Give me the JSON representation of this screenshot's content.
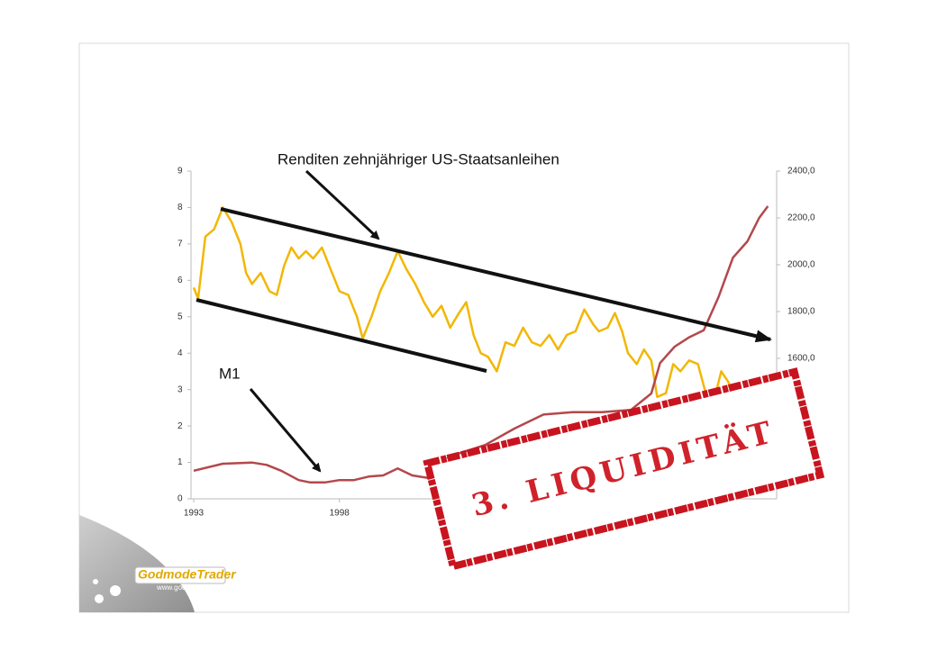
{
  "stamp": "3. LIQUIDITÄT",
  "logo": {
    "name": "GodmodeTrader",
    "url": "www.godmode-trader.de"
  },
  "chart_data": {
    "type": "line",
    "xlim": [
      1993,
      2013
    ],
    "xticks": [
      1993,
      1998
    ],
    "ylim": [
      0,
      9
    ],
    "yticks": [
      0,
      1,
      2,
      3,
      4,
      5,
      6,
      7,
      8,
      9
    ],
    "y2lim": [
      1000,
      2400
    ],
    "y2ticks": [
      {
        "value": 1600,
        "label": "1600,0"
      },
      {
        "value": 1800,
        "label": "1800,0"
      },
      {
        "value": 2000,
        "label": "2000,0"
      },
      {
        "value": 2200,
        "label": "2200,0"
      },
      {
        "value": 2400,
        "label": "2400,0"
      }
    ],
    "series": [
      {
        "name": "Renditen zehnjähriger US-Staatsanleihen",
        "color": "#f2b705",
        "x": [
          1993.0,
          1993.15,
          1993.4,
          1993.7,
          1994.0,
          1994.3,
          1994.6,
          1994.8,
          1995.0,
          1995.3,
          1995.6,
          1995.85,
          1996.1,
          1996.35,
          1996.6,
          1996.85,
          1997.1,
          1997.4,
          1997.7,
          1998.0,
          1998.3,
          1998.6,
          1998.8,
          1999.1,
          1999.4,
          1999.7,
          2000.0,
          2000.3,
          2000.6,
          2000.9,
          2001.2,
          2001.5,
          2001.8,
          2002.1,
          2002.35,
          2002.6,
          2002.85,
          2003.1,
          2003.4,
          2003.7,
          2004.0,
          2004.3,
          2004.6,
          2004.9,
          2005.2,
          2005.5,
          2005.8,
          2006.1,
          2006.4,
          2006.7,
          2006.9,
          2007.2,
          2007.45,
          2007.7,
          2007.9,
          2008.2,
          2008.45,
          2008.7,
          2008.9,
          2009.2,
          2009.45,
          2009.7,
          2010.0,
          2010.3,
          2010.6,
          2010.85,
          2011.1,
          2011.35,
          2011.6,
          2011.9,
          2012.2,
          2012.45,
          2012.7
        ],
        "values": [
          5.8,
          5.5,
          7.2,
          7.4,
          8.0,
          7.6,
          7.0,
          6.2,
          5.9,
          6.2,
          5.7,
          5.6,
          6.4,
          6.9,
          6.6,
          6.8,
          6.6,
          6.9,
          6.3,
          5.7,
          5.6,
          5.0,
          4.4,
          5.0,
          5.7,
          6.2,
          6.8,
          6.3,
          5.9,
          5.4,
          5.0,
          5.3,
          4.7,
          5.1,
          5.4,
          4.5,
          4.0,
          3.9,
          3.5,
          4.3,
          4.2,
          4.7,
          4.3,
          4.2,
          4.5,
          4.1,
          4.5,
          4.6,
          5.2,
          4.8,
          4.6,
          4.7,
          5.1,
          4.6,
          4.0,
          3.7,
          4.1,
          3.8,
          2.8,
          2.9,
          3.7,
          3.5,
          3.8,
          3.7,
          2.8,
          2.7,
          3.5,
          3.2,
          2.2,
          2.0,
          2.1,
          1.6,
          1.7
        ]
      },
      {
        "name": "M1",
        "color": "#b3484c",
        "axis": "y2",
        "x": [
          1993.0,
          1994.0,
          1995.0,
          1995.5,
          1996.0,
          1996.6,
          1997.0,
          1997.5,
          1998.0,
          1998.5,
          1999.0,
          1999.5,
          2000.0,
          2000.5,
          2001.0,
          2001.5,
          2002.0,
          2003.0,
          2004.0,
          2005.0,
          2006.0,
          2007.0,
          2008.0,
          2008.7,
          2009.0,
          2009.5,
          2010.0,
          2010.5,
          2011.0,
          2011.5,
          2012.0,
          2012.4,
          2012.7
        ],
        "values": [
          1120,
          1150,
          1155,
          1145,
          1120,
          1080,
          1070,
          1070,
          1080,
          1080,
          1095,
          1100,
          1130,
          1100,
          1090,
          1160,
          1190,
          1230,
          1300,
          1360,
          1370,
          1370,
          1380,
          1450,
          1580,
          1650,
          1690,
          1720,
          1860,
          2030,
          2100,
          2200,
          2250
        ]
      }
    ]
  }
}
